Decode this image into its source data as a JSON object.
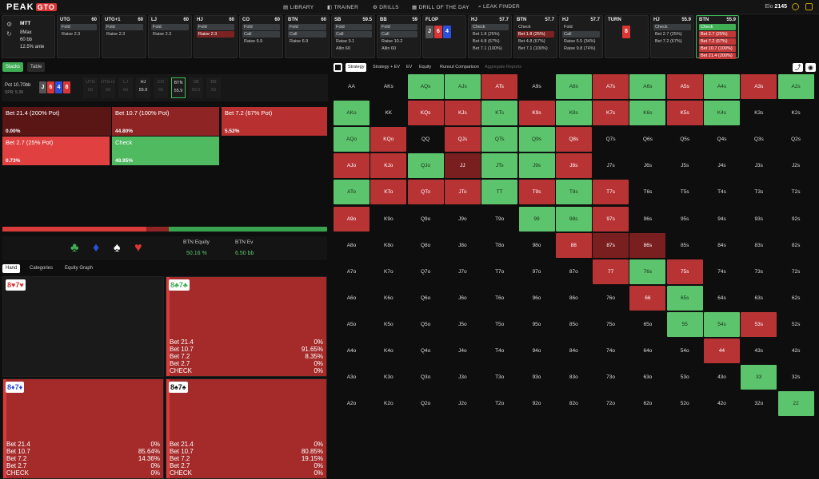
{
  "brand": {
    "name": "PEAK",
    "box": "GTO"
  },
  "nav": [
    "LIBRARY",
    "TRAINER",
    "DRILLS",
    "DRILL OF THE DAY",
    "LEAK FINDER"
  ],
  "elo": {
    "label": "Elo",
    "value": "2145"
  },
  "game": {
    "type": "MTT",
    "max": "8Max",
    "stack": "60 bb",
    "ante": "12.5% ante"
  },
  "spots": [
    {
      "pos": "UTG",
      "stack": "60",
      "opts": [
        "Fold",
        "Raise 2.3"
      ]
    },
    {
      "pos": "UTG+1",
      "stack": "60",
      "opts": [
        "Fold",
        "Raise 2.3"
      ]
    },
    {
      "pos": "LJ",
      "stack": "60",
      "opts": [
        "Fold",
        "Raise 2.3"
      ]
    },
    {
      "pos": "HJ",
      "stack": "60",
      "opts": [
        "Fold",
        "Raise 2.3"
      ]
    },
    {
      "pos": "CO",
      "stack": "60",
      "opts": [
        "Fold",
        "Call",
        "Raise 6.9"
      ]
    },
    {
      "pos": "BTN",
      "stack": "60",
      "opts": [
        "Fold",
        "Call",
        "Raise 6.9"
      ]
    },
    {
      "pos": "SB",
      "stack": "59.5",
      "opts": [
        "Fold",
        "Call",
        "Raise 9.1",
        "Allin 60"
      ]
    },
    {
      "pos": "BB",
      "stack": "59",
      "opts": [
        "Fold",
        "Call",
        "Raise 10.2",
        "Allin 60"
      ]
    },
    {
      "pos": "FLOP",
      "stack": "",
      "opts": []
    },
    {
      "pos": "HJ",
      "stack": "57.7",
      "opts": [
        "Check",
        "Bet 1.8 (25%)",
        "Bet 4.8 (67%)",
        "Bet 7.1 (100%)"
      ]
    },
    {
      "pos": "BTN",
      "stack": "57.7",
      "opts": [
        "Check",
        "Bet 1.8 (25%)",
        "Bet 4.8 (67%)",
        "Bet 7.1 (100%)"
      ]
    },
    {
      "pos": "HJ",
      "stack": "57.7",
      "opts": [
        "Fold",
        "Call",
        "Raise 5.5 (34%)",
        "Raise 9.8 (74%)"
      ]
    },
    {
      "pos": "TURN",
      "stack": "",
      "opts": []
    },
    {
      "pos": "HJ",
      "stack": "55.9",
      "opts": [
        "Check",
        "Bet 2.7 (25%)",
        "Bet 7.2 (67%)"
      ]
    },
    {
      "pos": "BTN",
      "stack": "55.9",
      "opts": [
        "Check",
        "Bet 2.7 (25%)",
        "Bet 7.2 (67%)",
        "Bet 10.7 (100%)",
        "Bet 21.4 (200%)"
      ]
    }
  ],
  "flop": [
    "J",
    "6",
    "4"
  ],
  "turn": "8",
  "left": {
    "tabs": [
      "Stacks",
      "Table"
    ],
    "pot_label": "Pot",
    "pot": "10.70bb",
    "spr": "SPR: 5.39",
    "board": [
      "J",
      "6",
      "4",
      "8"
    ],
    "seats": [
      {
        "p": "UTG",
        "s": "60"
      },
      {
        "p": "UTG+1",
        "s": "60"
      },
      {
        "p": "LJ",
        "s": "60"
      },
      {
        "p": "HJ",
        "s": "55.9"
      },
      {
        "p": "CO",
        "s": "60"
      },
      {
        "p": "BTN",
        "s": "55.9"
      },
      {
        "p": "SB",
        "s": "59.5"
      },
      {
        "p": "BB",
        "s": "59"
      }
    ],
    "actions": [
      {
        "label": "Bet 21.4 (200% Pot)",
        "pct": "0.00%",
        "color": "#5a1515"
      },
      {
        "label": "Bet 10.7 (100% Pot)",
        "pct": "44.80%",
        "color": "#8e2424"
      },
      {
        "label": "Bet 7.2 (67% Pot)",
        "pct": "5.52%",
        "color": "#b83030"
      },
      {
        "label": "Bet 2.7 (25% Pot)",
        "pct": "0.73%",
        "color": "#e04040"
      },
      {
        "label": "Check",
        "pct": "48.95%",
        "color": "#4fba60"
      }
    ],
    "eq_label": "BTN Equity",
    "eq": "50.16 %",
    "ev_label": "BTN Ev",
    "ev": "6.50 bb",
    "subtabs": [
      "Hand",
      "Categories",
      "Equity Graph"
    ],
    "hands": [
      {
        "card": "8♥7♥",
        "rows": []
      },
      {
        "card": "8♣7♣",
        "rows": [
          [
            "Bet 21.4",
            "0%"
          ],
          [
            "Bet 10.7",
            "91.65%"
          ],
          [
            "Bet 7.2",
            "8.35%"
          ],
          [
            "Bet 2.7",
            "0%"
          ],
          [
            "CHECK",
            "0%"
          ]
        ]
      },
      {
        "card": "8♦7♦",
        "rows": [
          [
            "Bet 21.4",
            "0%"
          ],
          [
            "Bet 10.7",
            "85.64%"
          ],
          [
            "Bet 7.2",
            "14.36%"
          ],
          [
            "Bet 2.7",
            "0%"
          ],
          [
            "CHECK",
            "0%"
          ]
        ]
      },
      {
        "card": "8♠7♠",
        "rows": [
          [
            "Bet 21.4",
            "0%"
          ],
          [
            "Bet 10.7",
            "80.85%"
          ],
          [
            "Bet 7.2",
            "19.15%"
          ],
          [
            "Bet 2.7",
            "0%"
          ],
          [
            "CHECK",
            "0%"
          ]
        ]
      }
    ]
  },
  "right": {
    "tabs": [
      "Strategy",
      "Strategy + EV",
      "EV",
      "Equity",
      "Runout Comparison",
      "Aggregate Reports"
    ]
  },
  "grid": [
    [
      "AA",
      "AKs",
      "AQs",
      "AJs",
      "ATs",
      "A9s",
      "A8s",
      "A7s",
      "A6s",
      "A5s",
      "A4s",
      "A3s",
      "A2s"
    ],
    [
      "AKo",
      "KK",
      "KQs",
      "KJs",
      "KTs",
      "K9s",
      "K8s",
      "K7s",
      "K6s",
      "K5s",
      "K4s",
      "K3s",
      "K2s"
    ],
    [
      "AQo",
      "KQo",
      "QQ",
      "QJs",
      "QTs",
      "Q9s",
      "Q8s",
      "Q7s",
      "Q6s",
      "Q5s",
      "Q4s",
      "Q3s",
      "Q2s"
    ],
    [
      "AJo",
      "KJo",
      "QJo",
      "JJ",
      "JTs",
      "J9s",
      "J8s",
      "J7s",
      "J6s",
      "J5s",
      "J4s",
      "J3s",
      "J2s"
    ],
    [
      "ATo",
      "KTo",
      "QTo",
      "JTo",
      "TT",
      "T9s",
      "T8s",
      "T7s",
      "T6s",
      "T5s",
      "T4s",
      "T3s",
      "T2s"
    ],
    [
      "A9o",
      "K9o",
      "Q9o",
      "J9o",
      "T9o",
      "99",
      "98s",
      "97s",
      "96s",
      "95s",
      "94s",
      "93s",
      "92s"
    ],
    [
      "A8o",
      "K8o",
      "Q8o",
      "J8o",
      "T8o",
      "98o",
      "88",
      "87s",
      "86s",
      "85s",
      "84s",
      "83s",
      "82s"
    ],
    [
      "A7o",
      "K7o",
      "Q7o",
      "J7o",
      "T7o",
      "97o",
      "87o",
      "77",
      "76s",
      "75s",
      "74s",
      "73s",
      "72s"
    ],
    [
      "A6o",
      "K6o",
      "Q6o",
      "J6o",
      "T6o",
      "96o",
      "86o",
      "76o",
      "66",
      "65s",
      "64s",
      "63s",
      "62s"
    ],
    [
      "A5o",
      "K5o",
      "Q5o",
      "J5o",
      "T5o",
      "95o",
      "85o",
      "75o",
      "65o",
      "55",
      "54s",
      "53s",
      "52s"
    ],
    [
      "A4o",
      "K4o",
      "Q4o",
      "J4o",
      "T4o",
      "94o",
      "84o",
      "74o",
      "64o",
      "54o",
      "44",
      "43s",
      "42s"
    ],
    [
      "A3o",
      "K3o",
      "Q3o",
      "J3o",
      "T3o",
      "93o",
      "83o",
      "73o",
      "63o",
      "53o",
      "43o",
      "33",
      "32s"
    ],
    [
      "A2o",
      "K2o",
      "Q2o",
      "J2o",
      "T2o",
      "92o",
      "82o",
      "72o",
      "62o",
      "52o",
      "42o",
      "32o",
      "22"
    ]
  ],
  "grid_colors": [
    "nnggrngrgrgrg",
    "gnrrgrgrgrgnn",
    "grnrggrnnnnnn",
    "rrgdggrnnnnnn",
    "grrrgrgrnnnnn",
    "rnnnnggrnnnnn",
    "nnnnnnrddnnnn",
    "nnnnnnnrgrnnn",
    "nnnnnnnnrgnnn",
    "nnnnnnnnnggrn",
    "nnnnnnnnnnrnn",
    "nnnnnnnnnnngn",
    "nnnnnnnnnnnng"
  ]
}
